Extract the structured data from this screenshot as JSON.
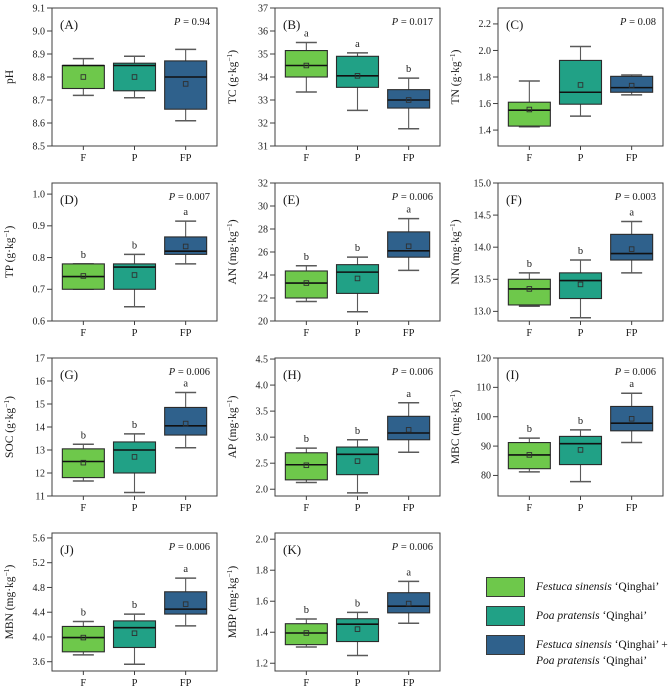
{
  "chart_data": {
    "type": "box",
    "categories": [
      "F",
      "P",
      "FP"
    ],
    "colors": {
      "F": "#6EC84B",
      "P": "#21A186",
      "FP": "#2F618C"
    },
    "style": {
      "axis_color": "#3f3f3f",
      "box_stroke": "#2b2b2b",
      "whisker_color": "#5a5a5a",
      "median_color": "#111111",
      "text_color": "#1a1a1a",
      "background": "#ffffff"
    },
    "panels": [
      {
        "id": "A",
        "label": "(A)",
        "ylabel": "pH",
        "p_label": "P = 0.94",
        "ymin": 8.5,
        "ymax": 9.1,
        "yticks": [
          "8.5",
          "8.6",
          "8.7",
          "8.8",
          "8.9",
          "9.0",
          "9.1"
        ],
        "boxes": [
          {
            "group": "F",
            "letter": "",
            "low": 8.72,
            "q1": 8.75,
            "median": 8.85,
            "q3": 8.85,
            "high": 8.88,
            "mean": 8.8
          },
          {
            "group": "P",
            "letter": "",
            "low": 8.71,
            "q1": 8.74,
            "median": 8.85,
            "q3": 8.86,
            "high": 8.89,
            "mean": 8.8
          },
          {
            "group": "FP",
            "letter": "",
            "low": 8.61,
            "q1": 8.66,
            "median": 8.8,
            "q3": 8.87,
            "high": 8.92,
            "mean": 8.77
          }
        ]
      },
      {
        "id": "B",
        "label": "(B)",
        "ylabel": "TC (g·kg⁻¹)",
        "p_label": "P = 0.017",
        "ymin": 31,
        "ymax": 37,
        "yticks": [
          "31",
          "32",
          "33",
          "34",
          "35",
          "36",
          "37"
        ],
        "boxes": [
          {
            "group": "F",
            "letter": "a",
            "low": 33.35,
            "q1": 34.0,
            "median": 34.5,
            "q3": 35.15,
            "high": 35.5,
            "mean": 34.5
          },
          {
            "group": "P",
            "letter": "a",
            "low": 32.55,
            "q1": 33.55,
            "median": 34.05,
            "q3": 34.9,
            "high": 35.05,
            "mean": 34.05
          },
          {
            "group": "FP",
            "letter": "b",
            "low": 31.75,
            "q1": 32.65,
            "median": 33.0,
            "q3": 33.45,
            "high": 33.95,
            "mean": 33.0
          }
        ]
      },
      {
        "id": "C",
        "label": "(C)",
        "ylabel": "TN (g·kg⁻¹)",
        "p_label": "P = 0.08",
        "ymin": 1.28,
        "ymax": 2.32,
        "yticks": [
          "1.4",
          "1.6",
          "1.8",
          "2.0",
          "2.2"
        ],
        "boxes": [
          {
            "group": "F",
            "letter": "",
            "low": 1.425,
            "q1": 1.43,
            "median": 1.55,
            "q3": 1.61,
            "high": 1.77,
            "mean": 1.555
          },
          {
            "group": "P",
            "letter": "",
            "low": 1.505,
            "q1": 1.595,
            "median": 1.685,
            "q3": 1.925,
            "high": 2.03,
            "mean": 1.74
          },
          {
            "group": "FP",
            "letter": "",
            "low": 1.665,
            "q1": 1.685,
            "median": 1.72,
            "q3": 1.805,
            "high": 1.815,
            "mean": 1.735
          }
        ]
      },
      {
        "id": "D",
        "label": "(D)",
        "ylabel": "TP (g·kg⁻¹)",
        "p_label": "P = 0.007",
        "ymin": 0.6,
        "ymax": 1.035,
        "yticks": [
          "0.6",
          "0.7",
          "0.8",
          "0.9",
          "1.0"
        ],
        "boxes": [
          {
            "group": "F",
            "letter": "b",
            "low": 0.7,
            "q1": 0.7,
            "median": 0.74,
            "q3": 0.78,
            "high": 0.78,
            "mean": 0.742
          },
          {
            "group": "P",
            "letter": "b",
            "low": 0.645,
            "q1": 0.7,
            "median": 0.77,
            "q3": 0.78,
            "high": 0.81,
            "mean": 0.745
          },
          {
            "group": "FP",
            "letter": "a",
            "low": 0.78,
            "q1": 0.81,
            "median": 0.82,
            "q3": 0.865,
            "high": 0.915,
            "mean": 0.835
          }
        ]
      },
      {
        "id": "E",
        "label": "(E)",
        "ylabel": "AN (mg·kg⁻¹)",
        "p_label": "P = 0.006",
        "ymin": 20,
        "ymax": 32,
        "yticks": [
          "20",
          "22",
          "24",
          "26",
          "28",
          "30",
          "32"
        ],
        "boxes": [
          {
            "group": "F",
            "letter": "b",
            "low": 21.7,
            "q1": 22.0,
            "median": 23.3,
            "q3": 24.35,
            "high": 24.8,
            "mean": 23.3
          },
          {
            "group": "P",
            "letter": "b",
            "low": 20.8,
            "q1": 22.4,
            "median": 24.25,
            "q3": 24.9,
            "high": 25.55,
            "mean": 23.7
          },
          {
            "group": "FP",
            "letter": "a",
            "low": 24.4,
            "q1": 25.55,
            "median": 26.1,
            "q3": 27.75,
            "high": 28.9,
            "mean": 26.5
          }
        ]
      },
      {
        "id": "F",
        "label": "(F)",
        "ylabel": "NN (mg·kg⁻¹)",
        "p_label": "P = 0.003",
        "ymin": 12.85,
        "ymax": 15.0,
        "yticks": [
          "13.0",
          "13.5",
          "14.0",
          "14.5",
          "15.0"
        ],
        "boxes": [
          {
            "group": "F",
            "letter": "b",
            "low": 13.08,
            "q1": 13.1,
            "median": 13.35,
            "q3": 13.5,
            "high": 13.6,
            "mean": 13.35
          },
          {
            "group": "P",
            "letter": "b",
            "low": 12.9,
            "q1": 13.2,
            "median": 13.48,
            "q3": 13.6,
            "high": 13.8,
            "mean": 13.42
          },
          {
            "group": "FP",
            "letter": "a",
            "low": 13.6,
            "q1": 13.8,
            "median": 13.9,
            "q3": 14.2,
            "high": 14.4,
            "mean": 13.97
          }
        ]
      },
      {
        "id": "G",
        "label": "(G)",
        "ylabel": "SOC (g·kg⁻¹)",
        "p_label": "P = 0.006",
        "ymin": 11,
        "ymax": 17,
        "yticks": [
          "11",
          "12",
          "13",
          "14",
          "15",
          "16",
          "17"
        ],
        "boxes": [
          {
            "group": "F",
            "letter": "b",
            "low": 11.65,
            "q1": 11.8,
            "median": 12.5,
            "q3": 13.05,
            "high": 13.25,
            "mean": 12.45
          },
          {
            "group": "P",
            "letter": "b",
            "low": 11.15,
            "q1": 12.0,
            "median": 13.0,
            "q3": 13.35,
            "high": 13.7,
            "mean": 12.7
          },
          {
            "group": "FP",
            "letter": "a",
            "low": 13.1,
            "q1": 13.65,
            "median": 14.05,
            "q3": 14.85,
            "high": 15.5,
            "mean": 14.15
          }
        ]
      },
      {
        "id": "H",
        "label": "(H)",
        "ylabel": "AP (mg·kg⁻¹)",
        "p_label": "P = 0.006",
        "ymin": 1.87,
        "ymax": 4.52,
        "yticks": [
          "2.0",
          "2.5",
          "3.0",
          "3.5",
          "4.0",
          "4.5"
        ],
        "boxes": [
          {
            "group": "F",
            "letter": "b",
            "low": 2.13,
            "q1": 2.18,
            "median": 2.47,
            "q3": 2.7,
            "high": 2.79,
            "mean": 2.46
          },
          {
            "group": "P",
            "letter": "b",
            "low": 1.93,
            "q1": 2.28,
            "median": 2.67,
            "q3": 2.81,
            "high": 2.95,
            "mean": 2.54
          },
          {
            "group": "FP",
            "letter": "a",
            "low": 2.71,
            "q1": 2.95,
            "median": 3.08,
            "q3": 3.4,
            "high": 3.66,
            "mean": 3.14
          }
        ]
      },
      {
        "id": "I",
        "label": "(I)",
        "ylabel": "MBC (mg·kg⁻¹)",
        "p_label": "P = 0.006",
        "ymin": 73,
        "ymax": 120,
        "yticks": [
          "80",
          "90",
          "100",
          "110",
          "120"
        ],
        "boxes": [
          {
            "group": "F",
            "letter": "b",
            "low": 81.2,
            "q1": 82.3,
            "median": 87.0,
            "q3": 91.2,
            "high": 92.7,
            "mean": 87.0
          },
          {
            "group": "P",
            "letter": "b",
            "low": 77.9,
            "q1": 83.7,
            "median": 90.8,
            "q3": 93.3,
            "high": 95.5,
            "mean": 88.7
          },
          {
            "group": "FP",
            "letter": "a",
            "low": 91.2,
            "q1": 95.2,
            "median": 97.8,
            "q3": 103.5,
            "high": 108.0,
            "mean": 99.3
          }
        ]
      },
      {
        "id": "J",
        "label": "(J)",
        "ylabel": "MBN (mg·kg⁻¹)",
        "p_label": "P = 0.006",
        "ymin": 3.45,
        "ymax": 5.68,
        "yticks": [
          "3.6",
          "4.0",
          "4.4",
          "4.8",
          "5.2",
          "5.6"
        ],
        "boxes": [
          {
            "group": "F",
            "letter": "b",
            "low": 3.71,
            "q1": 3.76,
            "median": 3.99,
            "q3": 4.17,
            "high": 4.25,
            "mean": 3.99
          },
          {
            "group": "P",
            "letter": "b",
            "low": 3.56,
            "q1": 3.83,
            "median": 4.15,
            "q3": 4.26,
            "high": 4.37,
            "mean": 4.06
          },
          {
            "group": "FP",
            "letter": "a",
            "low": 4.18,
            "q1": 4.37,
            "median": 4.45,
            "q3": 4.73,
            "high": 4.95,
            "mean": 4.53
          }
        ]
      },
      {
        "id": "K",
        "label": "(K)",
        "ylabel": "MBP (mg·kg⁻¹)",
        "p_label": "P = 0.006",
        "ymin": 1.15,
        "ymax": 2.04,
        "yticks": [
          "1.2",
          "1.4",
          "1.6",
          "1.8",
          "2.0"
        ],
        "boxes": [
          {
            "group": "F",
            "letter": "b",
            "low": 1.305,
            "q1": 1.32,
            "median": 1.395,
            "q3": 1.455,
            "high": 1.485,
            "mean": 1.395
          },
          {
            "group": "P",
            "letter": "b",
            "low": 1.25,
            "q1": 1.34,
            "median": 1.452,
            "q3": 1.487,
            "high": 1.528,
            "mean": 1.42
          },
          {
            "group": "FP",
            "letter": "a",
            "low": 1.458,
            "q1": 1.525,
            "median": 1.568,
            "q3": 1.655,
            "high": 1.728,
            "mean": 1.585
          }
        ]
      }
    ],
    "legend": {
      "items": [
        {
          "swatch": "F",
          "lines": [
            [
              {
                "text": "Festuca sinensis",
                "italic": true
              },
              {
                "text": " ‘Qinghai’",
                "italic": false
              }
            ]
          ]
        },
        {
          "swatch": "P",
          "lines": [
            [
              {
                "text": "Poa pratensis",
                "italic": true
              },
              {
                "text": " ‘Qinghai’",
                "italic": false
              }
            ]
          ]
        },
        {
          "swatch": "FP",
          "lines": [
            [
              {
                "text": "Festuca sinensis",
                "italic": true
              },
              {
                "text": " ‘Qinghai’ + ",
                "italic": false
              }
            ],
            [
              {
                "text": "Poa pratensis",
                "italic": true
              },
              {
                "text": " ‘Qinghai’",
                "italic": false
              }
            ]
          ]
        }
      ]
    }
  }
}
